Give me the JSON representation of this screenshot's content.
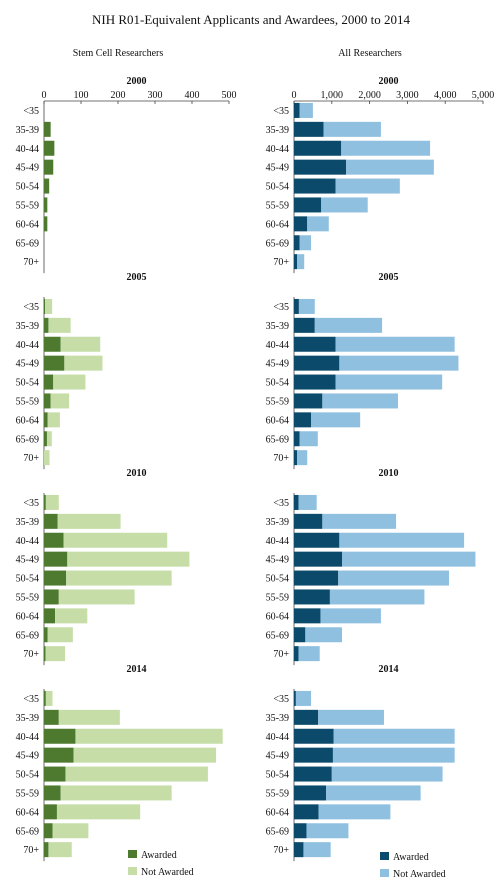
{
  "title": "NIH R01-Equivalent Applicants and Awardees, 2000 to 2014",
  "colors": {
    "stem_awarded": "#4e7a2f",
    "stem_not_awarded": "#c6dda8",
    "all_awarded": "#0b4a6a",
    "all_not_awarded": "#8fc0e0",
    "axis": "#444444"
  },
  "column_titles": {
    "stem": "Stem Cell Researchers",
    "all": "All Researchers"
  },
  "legends": {
    "stem": {
      "awarded": "Awarded",
      "not_awarded": "Not Awarded",
      "placement": "bottom-right"
    },
    "all": {
      "awarded": "Awarded",
      "not_awarded": "Not Awarded",
      "placement": "bottom-right"
    }
  },
  "chart_data": [
    {
      "type": "bar",
      "orientation": "horizontal",
      "stacked": true,
      "group": "stem",
      "title": "2000",
      "categories": [
        "<35",
        "35-39",
        "40-44",
        "45-49",
        "50-54",
        "55-59",
        "60-64",
        "65-69",
        "70+"
      ],
      "series": [
        {
          "name": "Awarded",
          "values": [
            0,
            18,
            28,
            25,
            14,
            9,
            9,
            0,
            0
          ]
        },
        {
          "name": "Not Awarded",
          "values": [
            0,
            0,
            0,
            0,
            0,
            0,
            0,
            0,
            0
          ]
        }
      ],
      "xlim": [
        0,
        500
      ],
      "xticks": [
        "0",
        "100",
        "200",
        "300",
        "400",
        "500"
      ]
    },
    {
      "type": "bar",
      "orientation": "horizontal",
      "stacked": true,
      "group": "all",
      "title": "2000",
      "categories": [
        "<35",
        "35-39",
        "40-44",
        "45-49",
        "50-54",
        "55-59",
        "60-64",
        "65-69",
        "70+"
      ],
      "series": [
        {
          "name": "Awarded",
          "values": [
            150,
            780,
            1250,
            1380,
            1100,
            720,
            350,
            150,
            80
          ]
        },
        {
          "name": "Not Awarded",
          "values": [
            350,
            1520,
            2350,
            2320,
            1700,
            1230,
            570,
            300,
            190
          ]
        }
      ],
      "xlim": [
        0,
        5000
      ],
      "xticks": [
        "0",
        "1,000",
        "2,000",
        "3,000",
        "4,000",
        "5,000"
      ]
    },
    {
      "type": "bar",
      "orientation": "horizontal",
      "stacked": true,
      "group": "stem",
      "title": "2005",
      "categories": [
        "<35",
        "35-39",
        "40-44",
        "45-49",
        "50-54",
        "55-59",
        "60-64",
        "65-69",
        "70+"
      ],
      "series": [
        {
          "name": "Awarded",
          "values": [
            3,
            12,
            45,
            55,
            25,
            18,
            10,
            8,
            0
          ]
        },
        {
          "name": "Not Awarded",
          "values": [
            19,
            60,
            107,
            103,
            87,
            50,
            33,
            13,
            15
          ]
        }
      ],
      "xlim": [
        0,
        500
      ]
    },
    {
      "type": "bar",
      "orientation": "horizontal",
      "stacked": true,
      "group": "all",
      "title": "2005",
      "categories": [
        "<35",
        "35-39",
        "40-44",
        "45-49",
        "50-54",
        "55-59",
        "60-64",
        "65-69",
        "70+"
      ],
      "series": [
        {
          "name": "Awarded",
          "values": [
            130,
            550,
            1100,
            1200,
            1100,
            750,
            450,
            150,
            80
          ]
        },
        {
          "name": "Not Awarded",
          "values": [
            420,
            1780,
            3150,
            3150,
            2820,
            2000,
            1300,
            480,
            270
          ]
        }
      ],
      "xlim": [
        0,
        5000
      ]
    },
    {
      "type": "bar",
      "orientation": "horizontal",
      "stacked": true,
      "group": "stem",
      "title": "2010",
      "categories": [
        "<35",
        "35-39",
        "40-44",
        "45-49",
        "50-54",
        "55-59",
        "60-64",
        "65-69",
        "70+"
      ],
      "series": [
        {
          "name": "Awarded",
          "values": [
            5,
            37,
            53,
            63,
            60,
            40,
            30,
            10,
            4
          ]
        },
        {
          "name": "Not Awarded",
          "values": [
            35,
            170,
            280,
            330,
            285,
            205,
            87,
            68,
            53
          ]
        }
      ],
      "xlim": [
        0,
        500
      ]
    },
    {
      "type": "bar",
      "orientation": "horizontal",
      "stacked": true,
      "group": "all",
      "title": "2010",
      "categories": [
        "<35",
        "35-39",
        "40-44",
        "45-49",
        "50-54",
        "55-59",
        "60-64",
        "65-69",
        "70+"
      ],
      "series": [
        {
          "name": "Awarded",
          "values": [
            120,
            750,
            1200,
            1270,
            1170,
            950,
            700,
            300,
            120
          ]
        },
        {
          "name": "Not Awarded",
          "values": [
            480,
            1950,
            3300,
            3530,
            2930,
            2500,
            1600,
            970,
            560
          ]
        }
      ],
      "xlim": [
        0,
        5000
      ]
    },
    {
      "type": "bar",
      "orientation": "horizontal",
      "stacked": true,
      "group": "stem",
      "title": "2014",
      "categories": [
        "<35",
        "35-39",
        "40-44",
        "45-49",
        "50-54",
        "55-59",
        "60-64",
        "65-69",
        "70+"
      ],
      "series": [
        {
          "name": "Awarded",
          "values": [
            5,
            40,
            85,
            80,
            58,
            45,
            35,
            23,
            12
          ]
        },
        {
          "name": "Not Awarded",
          "values": [
            18,
            165,
            398,
            385,
            385,
            300,
            225,
            97,
            63
          ]
        }
      ],
      "xlim": [
        0,
        500
      ]
    },
    {
      "type": "bar",
      "orientation": "horizontal",
      "stacked": true,
      "group": "all",
      "title": "2014",
      "categories": [
        "<35",
        "35-39",
        "40-44",
        "45-49",
        "50-54",
        "55-59",
        "60-64",
        "65-69",
        "70+"
      ],
      "series": [
        {
          "name": "Awarded",
          "values": [
            50,
            640,
            1050,
            1030,
            1000,
            850,
            650,
            330,
            250
          ]
        },
        {
          "name": "Not Awarded",
          "values": [
            400,
            1740,
            3200,
            3220,
            2930,
            2500,
            1900,
            1110,
            720
          ]
        }
      ],
      "xlim": [
        0,
        5000
      ]
    }
  ]
}
